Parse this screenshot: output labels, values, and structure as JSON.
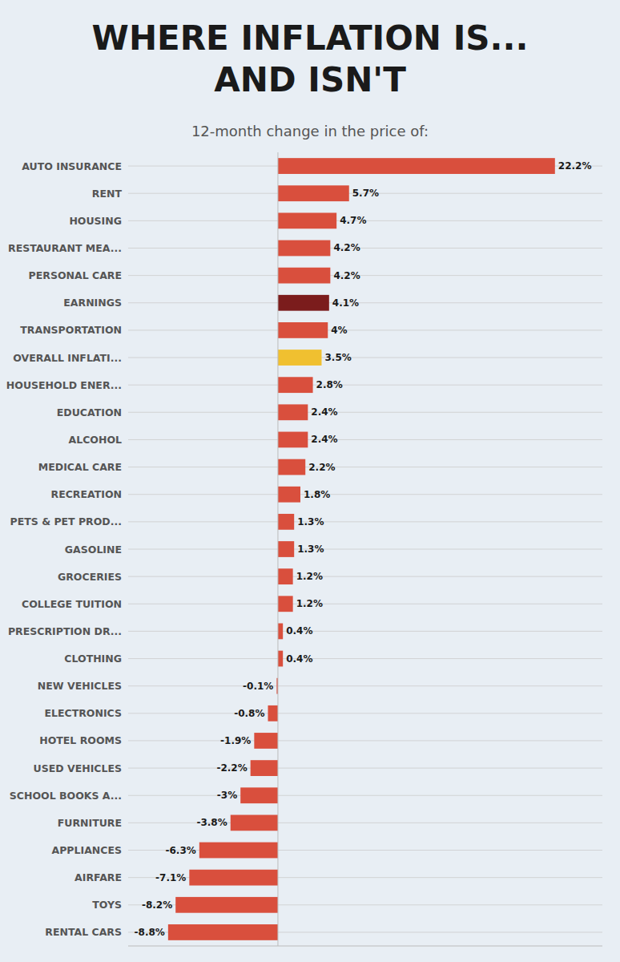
{
  "chart_data": {
    "type": "bar",
    "orientation": "horizontal",
    "title": [
      "WHERE INFLATION IS...",
      "AND ISN'T"
    ],
    "subtitle": "12-month change in the price of:",
    "categories": [
      "AUTO INSURANCE",
      "RENT",
      "HOUSING",
      "RESTAURANT MEA...",
      "PERSONAL CARE",
      "EARNINGS",
      "TRANSPORTATION",
      "OVERALL INFLATI...",
      "HOUSEHOLD ENER...",
      "EDUCATION",
      "ALCOHOL",
      "MEDICAL CARE",
      "RECREATION",
      "PETS & PET PROD...",
      "GASOLINE",
      "GROCERIES",
      "COLLEGE TUITION",
      "PRESCRIPTION DR...",
      "CLOTHING",
      "NEW VEHICLES",
      "ELECTRONICS",
      "HOTEL ROOMS",
      "USED VEHICLES",
      "SCHOOL BOOKS A...",
      "FURNITURE",
      "APPLIANCES",
      "AIRFARE",
      "TOYS",
      "RENTAL CARS"
    ],
    "values": [
      22.2,
      5.7,
      4.7,
      4.2,
      4.2,
      4.1,
      4.0,
      3.5,
      2.8,
      2.4,
      2.4,
      2.2,
      1.8,
      1.3,
      1.3,
      1.2,
      1.2,
      0.4,
      0.4,
      -0.1,
      -0.8,
      -1.9,
      -2.2,
      -3.0,
      -3.8,
      -6.3,
      -7.1,
      -8.2,
      -8.8
    ],
    "value_labels": [
      "22.2%",
      "5.7%",
      "4.7%",
      "4.2%",
      "4.2%",
      "4.1%",
      "4%",
      "3.5%",
      "2.8%",
      "2.4%",
      "2.4%",
      "2.2%",
      "1.8%",
      "1.3%",
      "1.3%",
      "1.2%",
      "1.2%",
      "0.4%",
      "0.4%",
      "-0.1%",
      "-0.8%",
      "-1.9%",
      "-2.2%",
      "-3%",
      "-3.8%",
      "-6.3%",
      "-7.1%",
      "-8.2%",
      "-8.8%"
    ],
    "colors": [
      "#d94f3d",
      "#d94f3d",
      "#d94f3d",
      "#d94f3d",
      "#d94f3d",
      "#7b1c1c",
      "#d94f3d",
      "#f0c030",
      "#d94f3d",
      "#d94f3d",
      "#d94f3d",
      "#d94f3d",
      "#d94f3d",
      "#d94f3d",
      "#d94f3d",
      "#d94f3d",
      "#d94f3d",
      "#d94f3d",
      "#d94f3d",
      "#d94f3d",
      "#d94f3d",
      "#d94f3d",
      "#d94f3d",
      "#d94f3d",
      "#d94f3d",
      "#d94f3d",
      "#d94f3d",
      "#d94f3d",
      "#d94f3d"
    ],
    "xlim": [
      -12,
      26
    ],
    "grid": true,
    "data_labels": true,
    "tick_labels": "y"
  }
}
